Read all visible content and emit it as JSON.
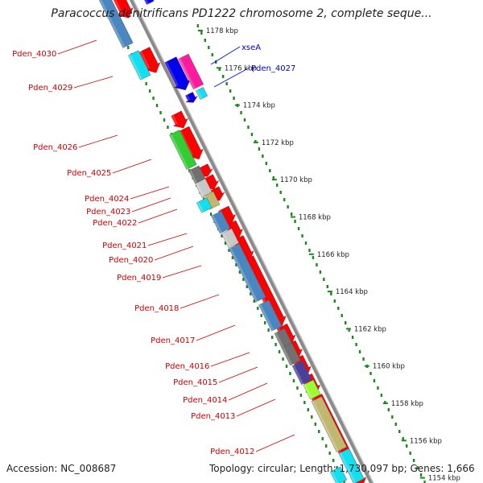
{
  "map": {
    "title": "Paracoccus denitrificans PD1222 chromosome 2, complete seque...",
    "accession": "Accession: NC_008687",
    "topology": "Topology: circular; Length: 1,730,097 bp; Genes: 1,666"
  },
  "ticks": [
    "1178 kbp",
    "1176 kbp",
    "1174 kbp",
    "1172 kbp",
    "1170 kbp",
    "1168 kbp",
    "1166 kbp",
    "1164 kbp",
    "1162 kbp",
    "1160 kbp",
    "1158 kbp",
    "1156 kbp",
    "1154 kbp"
  ],
  "gene_labels_left": [
    "Pden_4030",
    "Pden_4029",
    "Pden_4026",
    "Pden_4025",
    "Pden_4024",
    "Pden_4023",
    "Pden_4022",
    "Pden_4021",
    "Pden_4020",
    "Pden_4019",
    "Pden_4018",
    "Pden_4017",
    "Pden_4016",
    "Pden_4015",
    "Pden_4014",
    "Pden_4013",
    "Pden_4012"
  ],
  "gene_labels_right": [
    "xseA",
    "Pden_4027"
  ],
  "colors": {
    "backbone": "#8a8a8a",
    "tick": "#1a8a1a",
    "label_left": "#cc0000",
    "label_right": "#0000cc",
    "cds_forward": "#ff0000",
    "steelblue": "#4a86c0",
    "cyan": "#12e0f0",
    "green": "#33cc33",
    "gray": "#707070",
    "silver": "#c8c8c8",
    "khaki": "#c0b870",
    "purple": "#4a3f9a",
    "lime": "#99ff33",
    "blue": "#0000ee",
    "magenta": "#ff1aa0"
  }
}
